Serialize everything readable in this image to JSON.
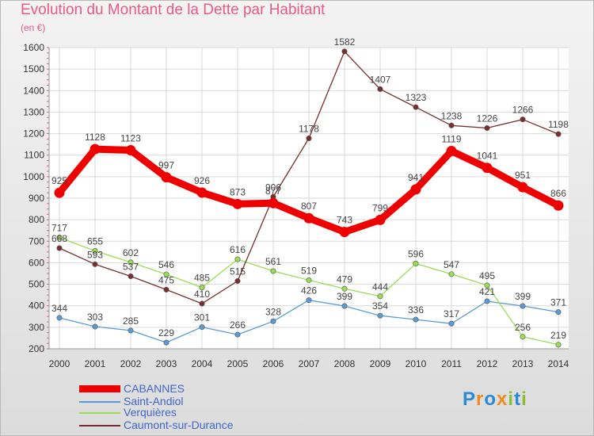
{
  "chart_data": {
    "type": "line",
    "title": "Evolution du Montant de la Dette par Habitant",
    "unit_label": "(en €)",
    "x": [
      2000,
      2001,
      2002,
      2003,
      2004,
      2005,
      2006,
      2007,
      2008,
      2009,
      2010,
      2011,
      2012,
      2013,
      2014
    ],
    "ylim": [
      200,
      1600
    ],
    "yticks": [
      200,
      300,
      400,
      500,
      600,
      700,
      800,
      900,
      1000,
      1100,
      1200,
      1300,
      1400,
      1500,
      1600
    ],
    "grid": true,
    "legend_position": "bottom-left",
    "series": [
      {
        "name": "CABANNES",
        "color": "#ee0000",
        "values": [
          925,
          1128,
          1123,
          997,
          926,
          873,
          877,
          807,
          743,
          799,
          941,
          1119,
          1041,
          951,
          866
        ]
      },
      {
        "name": "Saint-Andiol",
        "color": "#5b9bd5",
        "values": [
          344,
          303,
          285,
          229,
          301,
          266,
          328,
          426,
          399,
          354,
          336,
          317,
          421,
          399,
          371
        ]
      },
      {
        "name": "Verquières",
        "color": "#99dd55",
        "values": [
          717,
          655,
          602,
          546,
          485,
          616,
          561,
          519,
          479,
          444,
          596,
          547,
          495,
          256,
          219
        ]
      },
      {
        "name": "Caumont-sur-Durance",
        "color": "#7a2d2d",
        "values": [
          668,
          593,
          537,
          475,
          410,
          515,
          906,
          1178,
          1582,
          1407,
          1323,
          1238,
          1226,
          1266,
          1198
        ]
      }
    ]
  },
  "brand": {
    "letters": [
      "P",
      "r",
      "o",
      "x",
      "i",
      "t",
      "i"
    ],
    "colors": [
      "#2a8ad4",
      "#f08a1c",
      "#2a8ad4",
      "#f08a1c",
      "#88c032",
      "#2a8ad4",
      "#88c032"
    ]
  }
}
